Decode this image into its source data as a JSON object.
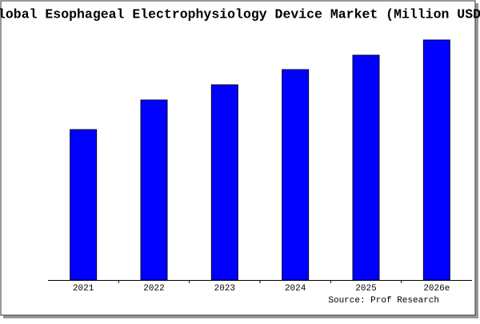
{
  "chart_data": {
    "type": "bar",
    "title": "Global Esophageal Electrophysiology Device Market (Million USD)",
    "categories": [
      "2021",
      "2022",
      "2023",
      "2024",
      "2025",
      "2026e"
    ],
    "values": [
      188,
      225,
      244,
      263,
      281,
      300
    ],
    "color": "#0000ff",
    "source": "Source: Prof Research"
  }
}
